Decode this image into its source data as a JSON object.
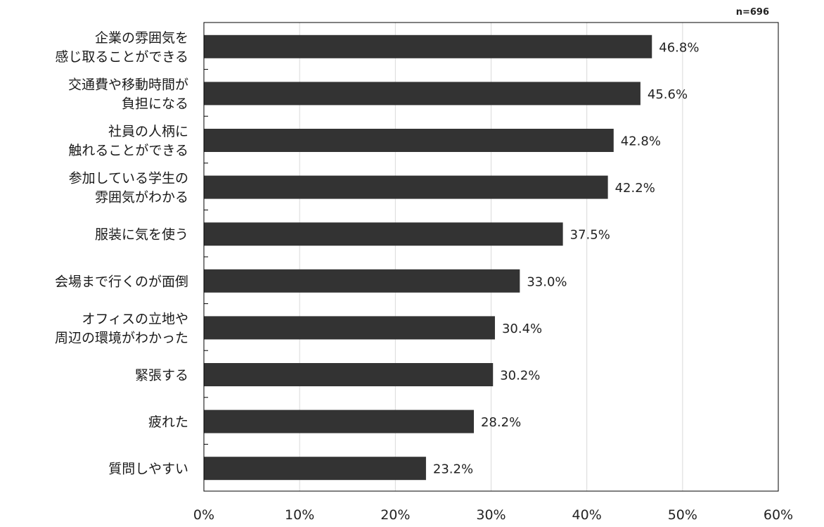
{
  "chart_data": {
    "type": "bar",
    "orientation": "horizontal",
    "note": "n=696",
    "categories": [
      [
        "企業の雰囲気を",
        "感じ取ることができる"
      ],
      [
        "交通費や移動時間が",
        "負担になる"
      ],
      [
        "社員の人柄に",
        "触れることができる"
      ],
      [
        "参加している学生の",
        "雰囲気がわかる"
      ],
      [
        "服装に気を使う"
      ],
      [
        "会場まで行くのが面倒"
      ],
      [
        "オフィスの立地や",
        "周辺の環境がわかった"
      ],
      [
        "緊張する"
      ],
      [
        "疲れた"
      ],
      [
        "質問しやすい"
      ]
    ],
    "values": [
      46.8,
      45.6,
      42.8,
      42.2,
      37.5,
      33.0,
      30.4,
      30.2,
      28.2,
      23.2
    ],
    "value_labels": [
      "46.8%",
      "45.6%",
      "42.8%",
      "42.2%",
      "37.5%",
      "33.0%",
      "30.4%",
      "30.2%",
      "28.2%",
      "23.2%"
    ],
    "xlim": [
      0,
      60
    ],
    "x_ticks": [
      0,
      10,
      20,
      30,
      40,
      50,
      60
    ],
    "x_tick_labels": [
      "0%",
      "10%",
      "20%",
      "30%",
      "40%",
      "50%",
      "60%"
    ],
    "grid": "vertical",
    "bar_color": "#333333",
    "grid_color": "#d9d9d9",
    "axis_color": "#000000"
  }
}
